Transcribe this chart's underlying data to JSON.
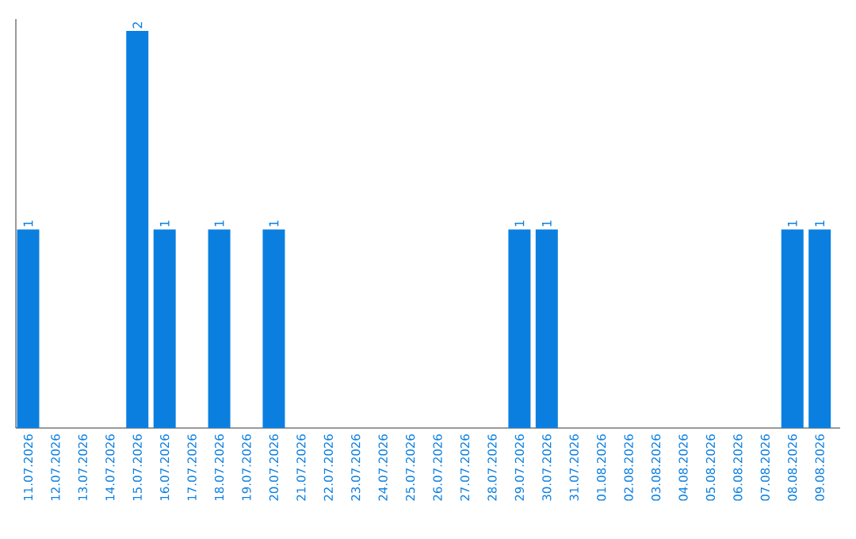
{
  "chart_data": {
    "type": "bar",
    "categories": [
      "11.07.2026",
      "12.07.2026",
      "13.07.2026",
      "14.07.2026",
      "15.07.2026",
      "16.07.2026",
      "17.07.2026",
      "18.07.2026",
      "19.07.2026",
      "20.07.2026",
      "21.07.2026",
      "22.07.2026",
      "23.07.2026",
      "24.07.2026",
      "25.07.2026",
      "26.07.2026",
      "27.07.2026",
      "28.07.2026",
      "29.07.2026",
      "30.07.2026",
      "31.07.2026",
      "01.08.2026",
      "02.08.2026",
      "03.08.2026",
      "04.08.2026",
      "05.08.2026",
      "06.08.2026",
      "07.08.2026",
      "08.08.2026",
      "09.08.2026"
    ],
    "values": [
      1,
      0,
      0,
      0,
      2,
      1,
      0,
      1,
      0,
      1,
      0,
      0,
      0,
      0,
      0,
      0,
      0,
      0,
      1,
      1,
      0,
      0,
      0,
      0,
      0,
      0,
      0,
      0,
      1,
      1
    ],
    "value_labels": [
      "1",
      null,
      null,
      null,
      "2",
      "1",
      null,
      "1",
      null,
      "1",
      null,
      null,
      null,
      null,
      null,
      null,
      null,
      null,
      "1",
      "1",
      null,
      null,
      null,
      null,
      null,
      null,
      null,
      null,
      "1",
      "1"
    ],
    "color": "#0a7fe0"
  }
}
